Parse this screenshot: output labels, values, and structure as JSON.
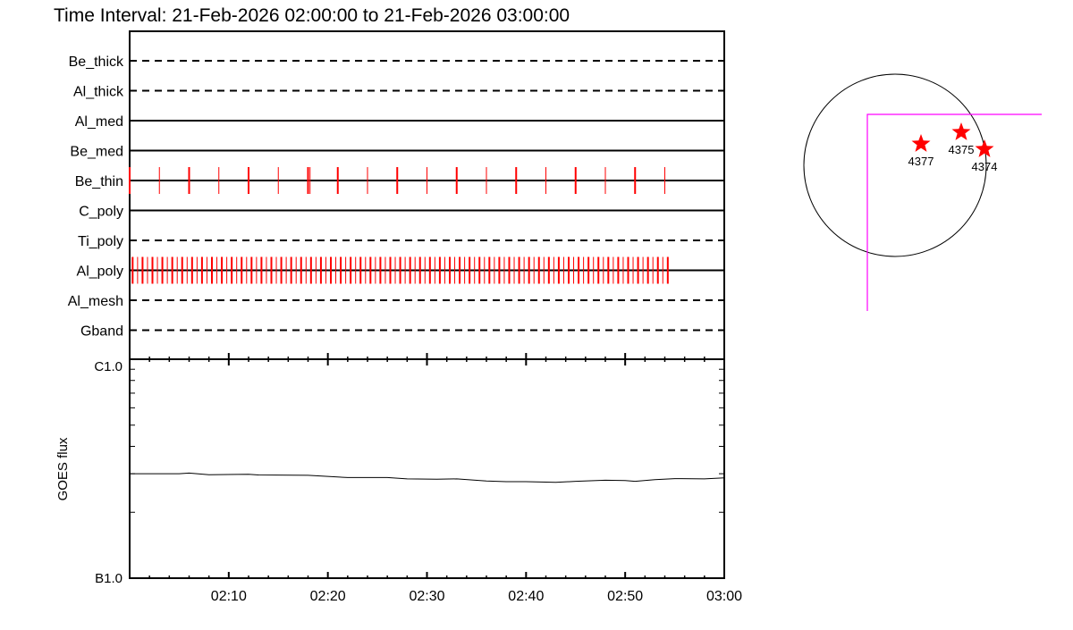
{
  "title": "Time Interval: 21-Feb-2026 02:00:00 to 21-Feb-2026 03:00:00",
  "colors": {
    "obs": "#ff0000",
    "fov": "#ff00ff",
    "axis": "#000000"
  },
  "chart_data": [
    {
      "type": "timeline",
      "x_range": [
        "02:00",
        "03:00"
      ],
      "rows": [
        {
          "label": "Be_thick",
          "style": "dashed",
          "times_min": []
        },
        {
          "label": "Al_thick",
          "style": "dashed",
          "times_min": []
        },
        {
          "label": "Al_med",
          "style": "solid",
          "times_min": []
        },
        {
          "label": "Be_med",
          "style": "solid",
          "times_min": []
        },
        {
          "label": "Be_thin",
          "style": "solid",
          "times_min": [
            0,
            3,
            6,
            9,
            12,
            15,
            18,
            18.2,
            21,
            24,
            27,
            30,
            33,
            36,
            39,
            42,
            45,
            48,
            51,
            54
          ]
        },
        {
          "label": "C_poly",
          "style": "solid",
          "times_min": []
        },
        {
          "label": "Ti_poly",
          "style": "dashed",
          "times_min": []
        },
        {
          "label": "Al_poly",
          "style": "solid",
          "times_min": [
            0.3,
            0.8,
            1.3,
            1.8,
            2.3,
            2.8,
            3.3,
            3.8,
            4.3,
            4.8,
            5.3,
            5.8,
            6.3,
            6.8,
            7.3,
            7.8,
            8.3,
            8.8,
            9.3,
            9.8,
            10.3,
            10.8,
            11.3,
            11.8,
            12.3,
            12.8,
            13.3,
            13.8,
            14.3,
            14.8,
            15.3,
            15.8,
            16.3,
            16.8,
            17.3,
            17.8,
            18.3,
            18.8,
            19.3,
            19.8,
            20.3,
            20.8,
            21.3,
            21.8,
            22.3,
            22.8,
            23.3,
            23.8,
            24.3,
            24.8,
            25.3,
            25.8,
            26.3,
            26.8,
            27.3,
            27.8,
            28.3,
            28.8,
            29.3,
            29.8,
            30.3,
            30.8,
            31.3,
            31.8,
            32.3,
            32.8,
            33.3,
            33.8,
            34.3,
            34.8,
            35.3,
            35.8,
            36.3,
            36.8,
            37.3,
            37.8,
            38.3,
            38.8,
            39.3,
            39.8,
            40.3,
            40.8,
            41.3,
            41.8,
            42.3,
            42.8,
            43.3,
            43.8,
            44.3,
            44.8,
            45.3,
            45.8,
            46.3,
            46.8,
            47.3,
            47.8,
            48.3,
            48.8,
            49.3,
            49.8,
            50.3,
            50.8,
            51.3,
            51.8,
            52.3,
            52.8,
            53.3,
            53.8,
            54.3
          ]
        },
        {
          "label": "Al_mesh",
          "style": "dashed",
          "times_min": []
        },
        {
          "label": "Gband",
          "style": "dashed",
          "times_min": []
        }
      ]
    },
    {
      "type": "line",
      "ylabel": "GOES flux",
      "yscale": "log",
      "ylim": [
        1e-07,
        1e-06
      ],
      "ytick_labels": [
        "B1.0",
        "C1.0"
      ],
      "xtick_labels": [
        "02:10",
        "02:20",
        "02:30",
        "02:40",
        "02:50",
        "03:00"
      ],
      "x_min": [
        0,
        5,
        6,
        8,
        12,
        13,
        18,
        22,
        26,
        28,
        31,
        33,
        36,
        38,
        40,
        43,
        45,
        48,
        50,
        51,
        53,
        55,
        58,
        60
      ],
      "y_flux": [
        3e-07,
        3e-07,
        3.02e-07,
        2.97e-07,
        2.98e-07,
        2.96e-07,
        2.95e-07,
        2.88e-07,
        2.88e-07,
        2.84e-07,
        2.83e-07,
        2.84e-07,
        2.78e-07,
        2.76e-07,
        2.76e-07,
        2.74e-07,
        2.77e-07,
        2.8e-07,
        2.79e-07,
        2.77e-07,
        2.82e-07,
        2.85e-07,
        2.84e-07,
        2.87e-07
      ]
    }
  ],
  "context_map": {
    "regions": [
      {
        "label": "4377",
        "dx": 29,
        "dy": -24
      },
      {
        "label": "4375",
        "dx": 74,
        "dy": -37
      },
      {
        "label": "4374",
        "dx": 100,
        "dy": -18
      }
    ]
  }
}
